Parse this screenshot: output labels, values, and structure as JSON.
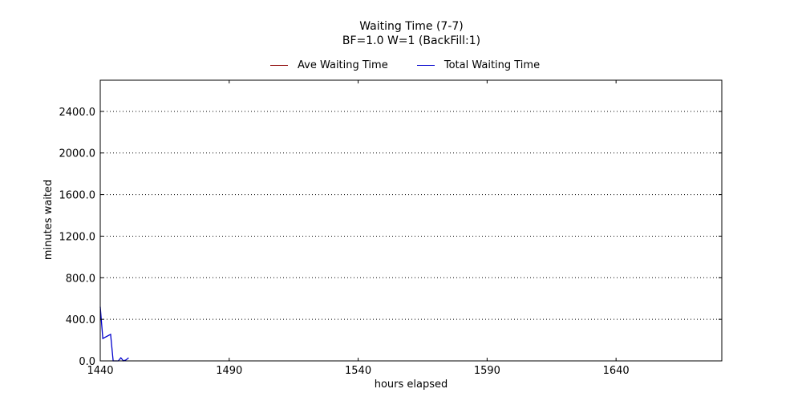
{
  "chart_data": {
    "type": "line",
    "title": "Waiting Time (7-7)",
    "subtitle": "BF=1.0   W=1   (BackFill:1)",
    "xlabel": "hours elapsed",
    "ylabel": "minutes waited",
    "xlim": [
      1440,
      1681
    ],
    "ylim": [
      0,
      2700
    ],
    "xticks": [
      1440,
      1490,
      1540,
      1590,
      1640
    ],
    "xtick_labels": [
      "1440",
      "1490",
      "1540",
      "1590",
      "1640"
    ],
    "yticks": [
      0,
      400,
      800,
      1200,
      1600,
      2000,
      2400
    ],
    "ytick_labels": [
      "0.0",
      "400.0",
      "800.0",
      "1200.0",
      "1600.0",
      "2000.0",
      "2400.0"
    ],
    "grid": "y-dotted",
    "legend_position": "top-center",
    "series": [
      {
        "name": "Ave Waiting Time",
        "color": "#8b0000",
        "x": [],
        "y": []
      },
      {
        "name": "Total Waiting Time",
        "color": "#0000cc",
        "x": [
          1440,
          1441,
          1444,
          1445,
          1447,
          1448,
          1449,
          1450,
          1451
        ],
        "y": [
          520,
          215,
          255,
          0,
          0,
          30,
          0,
          10,
          30
        ]
      }
    ]
  }
}
